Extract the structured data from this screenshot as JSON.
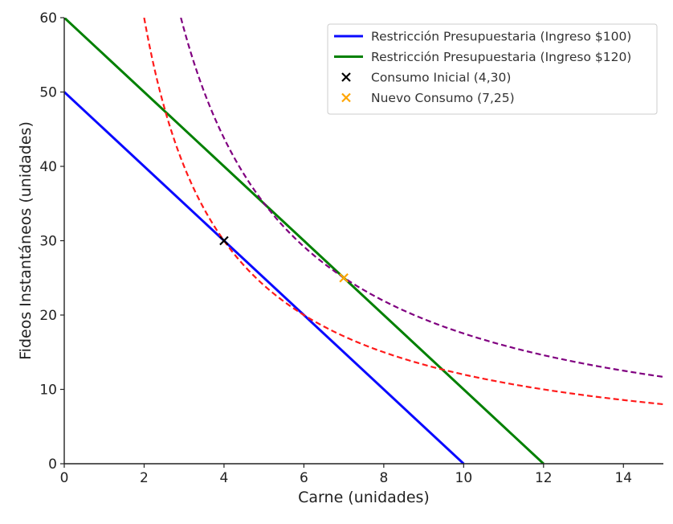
{
  "chart_data": {
    "type": "line",
    "title": "",
    "xlabel": "Carne (unidades)",
    "ylabel": "Fideos Instantáneos (unidades)",
    "xlim": [
      0,
      15
    ],
    "ylim": [
      0,
      60
    ],
    "xticks": [
      0,
      2,
      4,
      6,
      8,
      10,
      12,
      14
    ],
    "yticks": [
      0,
      10,
      20,
      30,
      40,
      50,
      60
    ],
    "grid": false,
    "legend_position": "top-right",
    "series": [
      {
        "name": "Restricción Presupuestaria (Ingreso $100)",
        "kind": "line",
        "style": "solid",
        "color": "#0a0aff",
        "x": [
          0,
          10
        ],
        "y": [
          50,
          0
        ]
      },
      {
        "name": "Restricción Presupuestaria (Ingreso $120)",
        "kind": "line",
        "style": "solid",
        "color": "#008000",
        "x": [
          0,
          12
        ],
        "y": [
          60,
          0
        ]
      },
      {
        "name": "",
        "kind": "curve",
        "style": "dashed",
        "color": "#ff1a1a",
        "x": [
          2,
          2.5,
          3,
          3.5,
          4,
          4.5,
          5,
          6,
          7,
          8,
          9,
          10,
          11,
          12,
          13,
          14,
          15
        ],
        "y": [
          60,
          48,
          40,
          34.3,
          30,
          26.7,
          24,
          20,
          17.1,
          15,
          13.3,
          12,
          10.9,
          10,
          9.2,
          8.6,
          8
        ]
      },
      {
        "name": "",
        "kind": "curve",
        "style": "dashed",
        "color": "#800080",
        "x": [
          2.92,
          3.5,
          4,
          4.5,
          5,
          6,
          7,
          8,
          9,
          10,
          11,
          12,
          13,
          14,
          15
        ],
        "y": [
          60,
          50,
          43.75,
          38.9,
          35,
          29.2,
          25,
          21.9,
          19.4,
          17.5,
          15.9,
          14.6,
          13.5,
          12.5,
          11.7
        ]
      },
      {
        "name": "Consumo Inicial (4,30)",
        "kind": "point",
        "marker": "x",
        "color": "#000000",
        "x": [
          4
        ],
        "y": [
          30
        ]
      },
      {
        "name": "Nuevo Consumo (7,25)",
        "kind": "point",
        "marker": "x",
        "color": "#ffa500",
        "x": [
          7
        ],
        "y": [
          25
        ]
      }
    ]
  }
}
